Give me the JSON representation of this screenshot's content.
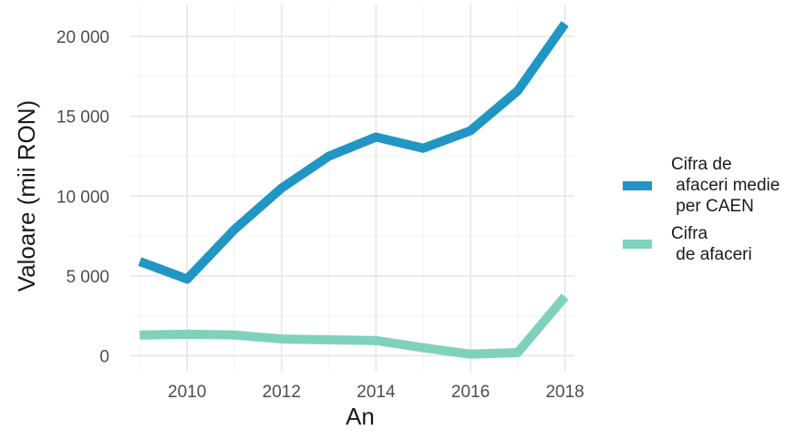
{
  "chart_data": {
    "type": "line",
    "xlabel": "An",
    "ylabel": "Valoare (mii RON)",
    "xlim": [
      2008.8,
      2018.2
    ],
    "ylim": [
      -1000,
      22000
    ],
    "x_ticks": [
      2010,
      2012,
      2014,
      2016,
      2018
    ],
    "x_tick_labels": [
      "2010",
      "2012",
      "2014",
      "2016",
      "2018"
    ],
    "y_ticks": [
      0,
      5000,
      10000,
      15000,
      20000
    ],
    "y_tick_labels": [
      "0",
      "5 000",
      "10 000",
      "15 000",
      "20 000"
    ],
    "grid": true,
    "legend_position": "right",
    "x": [
      2009,
      2010,
      2011,
      2012,
      2013,
      2014,
      2015,
      2016,
      2017,
      2018
    ],
    "series": [
      {
        "name": "Cifra de\n afaceri medie\n per CAEN",
        "color": "#2196c4",
        "values": [
          5900,
          4800,
          7900,
          10500,
          12500,
          13700,
          13000,
          14100,
          16600,
          20800
        ]
      },
      {
        "name": "Cifra\n de afaceri",
        "color": "#7fd1bb",
        "values": [
          1300,
          1350,
          1300,
          1050,
          1000,
          950,
          500,
          100,
          200,
          3700
        ]
      }
    ]
  }
}
